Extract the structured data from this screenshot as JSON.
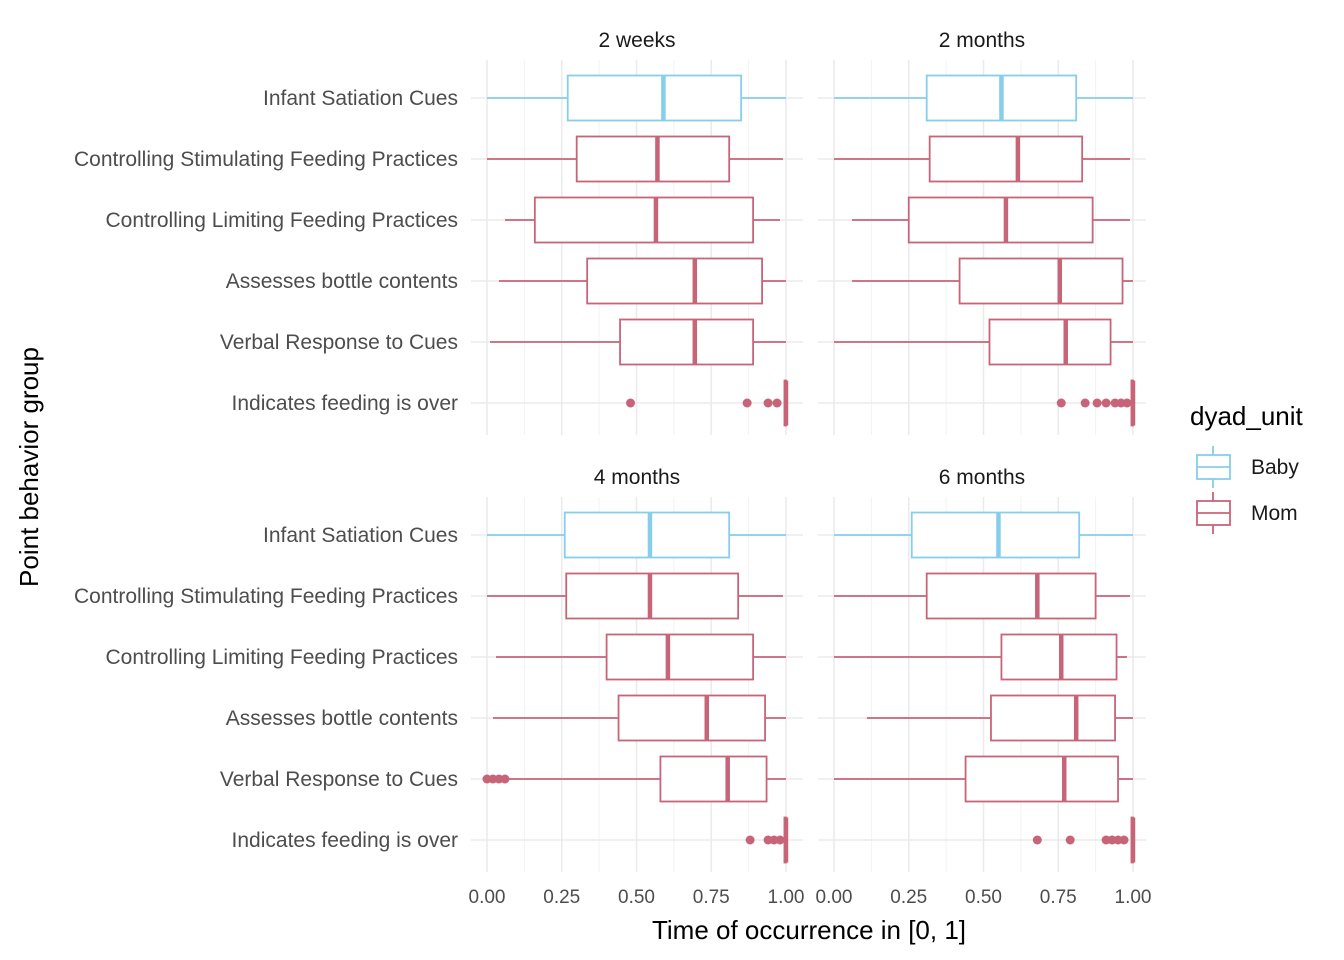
{
  "chart_data": {
    "type": "boxplot",
    "xlabel": "Time of occurrence in [0, 1]",
    "ylabel": "Point behavior group",
    "xlim": [
      0,
      1
    ],
    "x_ticks": [
      "0.00",
      "0.25",
      "0.50",
      "0.75",
      "1.00"
    ],
    "categories": [
      "Infant Satiation Cues",
      "Controlling Stimulating Feeding Practices",
      "Controlling Limiting Feeding Practices",
      "Assesses bottle contents",
      "Verbal Response to Cues",
      "Indicates feeding is over"
    ],
    "category_groups": [
      "Baby",
      "Mom",
      "Mom",
      "Mom",
      "Mom",
      "Mom"
    ],
    "legend": {
      "title": "dyad_unit",
      "position": "right",
      "items": [
        {
          "label": "Baby",
          "color": "#87CEEB"
        },
        {
          "label": "Mom",
          "color": "#C86478"
        }
      ]
    },
    "grid": true,
    "facets": [
      {
        "title": "2 weeks",
        "boxes": [
          {
            "min": 0.0,
            "q1": 0.27,
            "median": 0.59,
            "q3": 0.85,
            "max": 1.0,
            "outliers": []
          },
          {
            "min": 0.0,
            "q1": 0.3,
            "median": 0.57,
            "q3": 0.81,
            "max": 0.99,
            "outliers": []
          },
          {
            "min": 0.06,
            "q1": 0.16,
            "median": 0.565,
            "q3": 0.89,
            "max": 0.98,
            "outliers": []
          },
          {
            "min": 0.04,
            "q1": 0.335,
            "median": 0.695,
            "q3": 0.92,
            "max": 1.0,
            "outliers": []
          },
          {
            "min": 0.01,
            "q1": 0.445,
            "median": 0.695,
            "q3": 0.89,
            "max": 1.0,
            "outliers": []
          },
          {
            "min": 0.995,
            "q1": 0.995,
            "median": 1.0,
            "q3": 1.0,
            "max": 1.0,
            "outliers": [
              0.48,
              0.87,
              0.94,
              0.97
            ]
          }
        ]
      },
      {
        "title": "2 months",
        "boxes": [
          {
            "min": 0.0,
            "q1": 0.31,
            "median": 0.56,
            "q3": 0.81,
            "max": 1.0,
            "outliers": []
          },
          {
            "min": 0.0,
            "q1": 0.32,
            "median": 0.615,
            "q3": 0.83,
            "max": 0.99,
            "outliers": []
          },
          {
            "min": 0.06,
            "q1": 0.25,
            "median": 0.575,
            "q3": 0.865,
            "max": 0.99,
            "outliers": []
          },
          {
            "min": 0.06,
            "q1": 0.42,
            "median": 0.755,
            "q3": 0.965,
            "max": 1.0,
            "outliers": []
          },
          {
            "min": 0.0,
            "q1": 0.52,
            "median": 0.775,
            "q3": 0.925,
            "max": 1.0,
            "outliers": []
          },
          {
            "min": 0.995,
            "q1": 0.995,
            "median": 1.0,
            "q3": 1.0,
            "max": 1.0,
            "outliers": [
              0.76,
              0.84,
              0.88,
              0.91,
              0.94,
              0.96,
              0.98
            ]
          }
        ]
      },
      {
        "title": "4 months",
        "boxes": [
          {
            "min": 0.0,
            "q1": 0.26,
            "median": 0.545,
            "q3": 0.81,
            "max": 1.0,
            "outliers": []
          },
          {
            "min": 0.0,
            "q1": 0.265,
            "median": 0.545,
            "q3": 0.84,
            "max": 0.99,
            "outliers": []
          },
          {
            "min": 0.03,
            "q1": 0.4,
            "median": 0.605,
            "q3": 0.89,
            "max": 1.0,
            "outliers": []
          },
          {
            "min": 0.02,
            "q1": 0.44,
            "median": 0.735,
            "q3": 0.93,
            "max": 1.0,
            "outliers": []
          },
          {
            "min": 0.07,
            "q1": 0.58,
            "median": 0.805,
            "q3": 0.935,
            "max": 1.0,
            "outliers": [
              0.0,
              0.02,
              0.04,
              0.06
            ]
          },
          {
            "min": 0.995,
            "q1": 0.995,
            "median": 1.0,
            "q3": 1.0,
            "max": 1.0,
            "outliers": [
              0.88,
              0.94,
              0.96,
              0.98
            ]
          }
        ]
      },
      {
        "title": "6 months",
        "boxes": [
          {
            "min": 0.0,
            "q1": 0.26,
            "median": 0.55,
            "q3": 0.82,
            "max": 1.0,
            "outliers": []
          },
          {
            "min": 0.0,
            "q1": 0.31,
            "median": 0.68,
            "q3": 0.875,
            "max": 0.99,
            "outliers": []
          },
          {
            "min": 0.0,
            "q1": 0.56,
            "median": 0.76,
            "q3": 0.945,
            "max": 0.98,
            "outliers": []
          },
          {
            "min": 0.11,
            "q1": 0.525,
            "median": 0.81,
            "q3": 0.94,
            "max": 1.0,
            "outliers": []
          },
          {
            "min": 0.0,
            "q1": 0.44,
            "median": 0.77,
            "q3": 0.95,
            "max": 1.0,
            "outliers": []
          },
          {
            "min": 0.995,
            "q1": 0.995,
            "median": 1.0,
            "q3": 1.0,
            "max": 1.0,
            "outliers": [
              0.68,
              0.79,
              0.91,
              0.93,
              0.95,
              0.97
            ]
          }
        ]
      }
    ]
  }
}
